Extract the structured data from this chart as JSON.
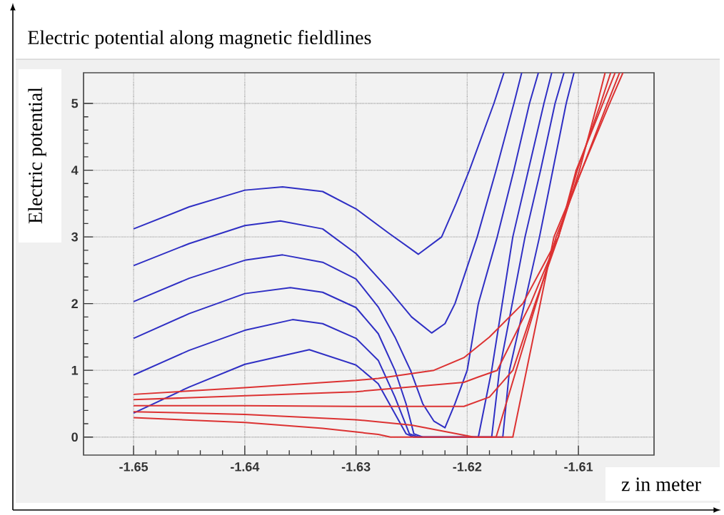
{
  "chart_data": {
    "type": "line",
    "title": "Electric potential along magnetic fieldlines",
    "xlabel": "z in meter",
    "ylabel": "Electric potential",
    "xlim": [
      -1.6545,
      -1.6032
    ],
    "ylim": [
      -0.27,
      5.46
    ],
    "xticks": [
      -1.65,
      -1.64,
      -1.63,
      -1.62,
      -1.61
    ],
    "yticks": [
      0,
      1,
      2,
      3,
      4,
      5
    ],
    "grid": true,
    "series": [
      {
        "color": "#2f2fc4",
        "x": [
          -1.65,
          -1.645,
          -1.64,
          -1.6366,
          -1.633,
          -1.63,
          -1.627,
          -1.6244,
          -1.6223,
          -1.621,
          -1.6198,
          -1.6176,
          -1.6167
        ],
        "values": [
          3.12,
          3.45,
          3.7,
          3.75,
          3.68,
          3.42,
          3.05,
          2.74,
          3.0,
          3.5,
          4.0,
          5.0,
          5.46
        ]
      },
      {
        "color": "#2f2fc4",
        "x": [
          -1.65,
          -1.645,
          -1.64,
          -1.6368,
          -1.633,
          -1.63,
          -1.627,
          -1.625,
          -1.6232,
          -1.622,
          -1.6211,
          -1.6191,
          -1.6174,
          -1.6158,
          -1.6151
        ],
        "values": [
          2.57,
          2.9,
          3.17,
          3.24,
          3.12,
          2.75,
          2.2,
          1.8,
          1.56,
          1.7,
          2.0,
          3.0,
          4.0,
          5.0,
          5.46
        ]
      },
      {
        "color": "#2f2fc4",
        "x": [
          -1.65,
          -1.645,
          -1.64,
          -1.6366,
          -1.633,
          -1.63,
          -1.628,
          -1.6265,
          -1.6251,
          -1.624,
          -1.623,
          -1.622,
          -1.6211,
          -1.62,
          -1.619,
          -1.6173,
          -1.6158,
          -1.6144,
          -1.6136
        ],
        "values": [
          2.03,
          2.38,
          2.65,
          2.73,
          2.62,
          2.37,
          1.95,
          1.5,
          1.0,
          0.5,
          0.24,
          0.14,
          0.5,
          1.0,
          2.0,
          3.0,
          4.0,
          5.0,
          5.46
        ]
      },
      {
        "color": "#2f2fc4",
        "x": [
          -1.65,
          -1.645,
          -1.64,
          -1.6359,
          -1.633,
          -1.63,
          -1.628,
          -1.6265,
          -1.6255,
          -1.6248,
          -1.624,
          -1.619,
          -1.6178,
          -1.6159,
          -1.6145,
          -1.6131,
          -1.6124
        ],
        "values": [
          1.48,
          1.85,
          2.15,
          2.24,
          2.17,
          1.94,
          1.55,
          1.0,
          0.5,
          0.05,
          0.0,
          0.0,
          1.0,
          3.0,
          4.0,
          5.0,
          5.46
        ]
      },
      {
        "color": "#2f2fc4",
        "x": [
          -1.65,
          -1.645,
          -1.64,
          -1.6357,
          -1.633,
          -1.63,
          -1.628,
          -1.6265,
          -1.6252,
          -1.6244,
          -1.6178,
          -1.6171,
          -1.6148,
          -1.6134,
          -1.6121,
          -1.6113
        ],
        "values": [
          0.93,
          1.3,
          1.6,
          1.76,
          1.7,
          1.48,
          1.15,
          0.6,
          0.05,
          0.0,
          0.0,
          1.0,
          3.0,
          4.0,
          5.0,
          5.46
        ]
      },
      {
        "color": "#2f2fc4",
        "x": [
          -1.65,
          -1.645,
          -1.64,
          -1.6342,
          -1.63,
          -1.628,
          -1.6265,
          -1.6255,
          -1.6248,
          -1.6168,
          -1.6162,
          -1.6135,
          -1.6123,
          -1.6111,
          -1.6104
        ],
        "values": [
          0.36,
          0.75,
          1.09,
          1.31,
          1.08,
          0.8,
          0.35,
          0.05,
          0.0,
          0.0,
          1.0,
          3.0,
          4.0,
          5.0,
          5.46
        ]
      },
      {
        "color": "#dc3232",
        "x": [
          -1.65,
          -1.64,
          -1.63,
          -1.628,
          -1.623,
          -1.6203,
          -1.618,
          -1.615,
          -1.6118,
          -1.6099,
          -1.6083,
          -1.6076
        ],
        "values": [
          0.64,
          0.74,
          0.85,
          0.88,
          1.0,
          1.19,
          1.5,
          2.0,
          3.0,
          4.0,
          5.0,
          5.46
        ]
      },
      {
        "color": "#dc3232",
        "x": [
          -1.65,
          -1.64,
          -1.63,
          -1.6203,
          -1.619,
          -1.6173,
          -1.6143,
          -1.6118,
          -1.6101,
          -1.608,
          -1.6071
        ],
        "values": [
          0.56,
          0.62,
          0.68,
          0.82,
          0.9,
          1.0,
          2.0,
          3.0,
          4.0,
          5.0,
          5.46
        ]
      },
      {
        "color": "#dc3232",
        "x": [
          -1.65,
          -1.64,
          -1.63,
          -1.6203,
          -1.618,
          -1.6159,
          -1.6139,
          -1.6118,
          -1.6102,
          -1.6078,
          -1.6067
        ],
        "values": [
          0.47,
          0.47,
          0.46,
          0.46,
          0.6,
          1.0,
          2.0,
          3.0,
          4.0,
          5.0,
          5.46
        ]
      },
      {
        "color": "#dc3232",
        "x": [
          -1.65,
          -1.64,
          -1.63,
          -1.625,
          -1.6194,
          -1.6174,
          -1.612,
          -1.6074,
          -1.6063
        ],
        "values": [
          0.38,
          0.34,
          0.26,
          0.18,
          0.0,
          0.0,
          3.0,
          5.0,
          5.46
        ]
      },
      {
        "color": "#dc3232",
        "x": [
          -1.65,
          -1.64,
          -1.633,
          -1.628,
          -1.6269,
          -1.6159,
          -1.6122,
          -1.6072,
          -1.606
        ],
        "values": [
          0.29,
          0.22,
          0.13,
          0.04,
          0.0,
          0.0,
          3.0,
          5.0,
          5.46
        ]
      }
    ]
  }
}
